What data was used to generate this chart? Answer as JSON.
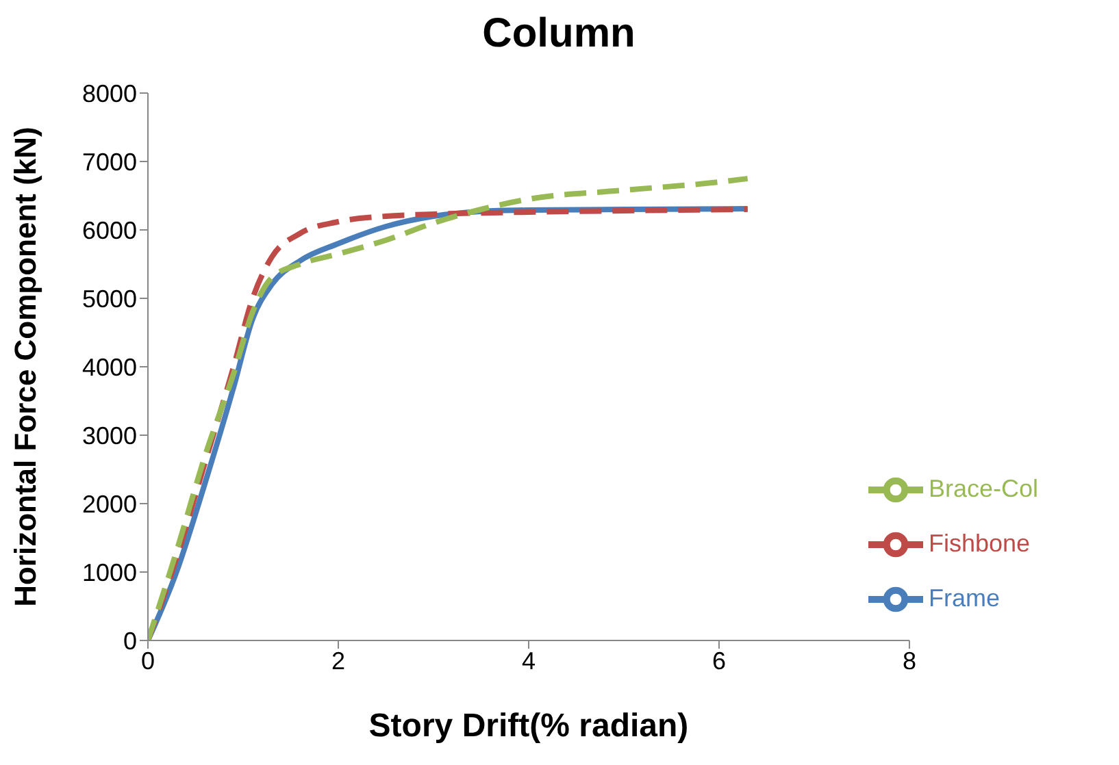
{
  "chart_data": {
    "type": "line",
    "title": "Column",
    "xlabel": "Story Drift(% radian)",
    "ylabel": "Horizontal Force Component (kN)",
    "xlim": [
      0,
      8
    ],
    "xticks": [
      0,
      2,
      4,
      6,
      8
    ],
    "ylim": [
      0,
      8000
    ],
    "yticks": [
      0,
      1000,
      2000,
      3000,
      4000,
      5000,
      6000,
      7000,
      8000
    ],
    "grid": false,
    "legend": "right",
    "marker": "none",
    "series": [
      {
        "name": "Frame",
        "color": "#4a7ebb",
        "line_style": "solid",
        "x": [
          0,
          0.3,
          0.6,
          0.9,
          1.1,
          1.3,
          1.6,
          2,
          2.5,
          3,
          3.5,
          4,
          5,
          6.3
        ],
        "values": [
          0,
          1000,
          2300,
          3700,
          4700,
          5200,
          5550,
          5800,
          6050,
          6200,
          6270,
          6290,
          6300,
          6310
        ]
      },
      {
        "name": "Fishbone",
        "color": "#be4b48",
        "line_style": "dashed",
        "x": [
          0,
          0.3,
          0.6,
          0.9,
          1.1,
          1.3,
          1.6,
          2,
          2.5,
          3,
          4,
          5,
          6.3
        ],
        "values": [
          0,
          1200,
          2600,
          4000,
          5000,
          5600,
          5950,
          6120,
          6200,
          6230,
          6260,
          6280,
          6300
        ]
      },
      {
        "name": "Brace-Col",
        "color": "#98b954",
        "line_style": "dashed",
        "x": [
          0,
          0.3,
          0.6,
          0.9,
          1.1,
          1.3,
          1.6,
          2,
          2.5,
          3,
          3.5,
          4,
          5,
          6,
          6.3
        ],
        "values": [
          0,
          1300,
          2700,
          3900,
          4800,
          5300,
          5500,
          5650,
          5850,
          6100,
          6300,
          6450,
          6580,
          6700,
          6750
        ]
      }
    ]
  }
}
